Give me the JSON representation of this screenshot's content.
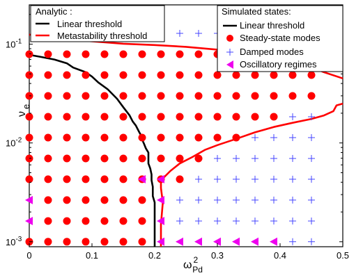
{
  "chart_data": {
    "type": "scatter",
    "title": "",
    "xlabel": "ω",
    "xlabel_superscript": "2",
    "xlabel_subscript": "Pd",
    "ylabel": "ν",
    "ylabel_subscript": "e",
    "xlim": [
      0,
      0.5
    ],
    "ylim": [
      0.00089,
      0.25
    ],
    "yscale": "log",
    "grid": false,
    "x_ticks": [
      {
        "value": 0,
        "label": "0"
      },
      {
        "value": 0.1,
        "label": "0.1"
      },
      {
        "value": 0.2,
        "label": "0.2"
      },
      {
        "value": 0.3,
        "label": "0.3"
      },
      {
        "value": 0.4,
        "label": "0.4"
      },
      {
        "value": 0.5,
        "label": "0.5"
      }
    ],
    "y_ticks": [
      {
        "value": 0.001,
        "label": "10",
        "exponent": "-3"
      },
      {
        "value": 0.01,
        "label": "10",
        "exponent": "-2"
      },
      {
        "value": 0.1,
        "label": "10",
        "exponent": "-1"
      }
    ],
    "grid_x": [
      0,
      0.03,
      0.06,
      0.09,
      0.12,
      0.15,
      0.18,
      0.21,
      0.24,
      0.27,
      0.3,
      0.33,
      0.36,
      0.39,
      0.42,
      0.45
    ],
    "grid_y": [
      0.001,
      0.00162,
      0.00264,
      0.00429,
      0.00697,
      0.01133,
      0.01842,
      0.02995,
      0.04869,
      0.07915,
      0.12868,
      0.2092
    ],
    "legend_analytic": {
      "title": "Analytic :",
      "position": "top-left",
      "entries": [
        {
          "label": "Linear threshold",
          "color": "#000000",
          "marker": "line"
        },
        {
          "label": "Metastability threshold",
          "color": "#ff0000",
          "marker": "line"
        }
      ]
    },
    "legend_simulated": {
      "title": "Simulated states:",
      "position": "top-right",
      "entries": [
        {
          "label": "Linear threshold",
          "color": "#000000",
          "marker": "line"
        },
        {
          "label": "Steady-state modes",
          "color": "#ff0000",
          "marker": "circle"
        },
        {
          "label": "Damped modes",
          "color": "#4444ff",
          "marker": "plus"
        },
        {
          "label": "Oscillatory  regimes",
          "color": "#ee00ee",
          "marker": "triangle-left"
        }
      ]
    },
    "series": [
      {
        "name": "Steady-state modes",
        "color": "#ff0000",
        "marker": "circle",
        "rows": [
          {
            "y": 0.07915,
            "x": [
              0,
              0.03,
              0.06,
              0.09,
              0.12,
              0.15,
              0.18,
              0.21,
              0.24,
              0.27,
              0.3,
              0.33,
              0.36,
              0.39,
              0.42,
              0.45
            ]
          },
          {
            "y": 0.04869,
            "x": [
              0,
              0.03,
              0.06,
              0.09,
              0.12,
              0.15,
              0.18,
              0.21,
              0.24,
              0.27,
              0.3,
              0.33,
              0.36,
              0.39,
              0.42,
              0.45
            ]
          },
          {
            "y": 0.02995,
            "x": [
              0,
              0.03,
              0.06,
              0.09,
              0.12,
              0.15,
              0.18,
              0.21,
              0.24,
              0.27,
              0.3,
              0.33,
              0.36,
              0.39,
              0.42,
              0.45
            ]
          },
          {
            "y": 0.01842,
            "x": [
              0,
              0.03,
              0.06,
              0.09,
              0.12,
              0.15,
              0.18,
              0.21,
              0.24,
              0.27,
              0.3,
              0.33,
              0.36,
              0.39
            ]
          },
          {
            "y": 0.01133,
            "x": [
              0,
              0.03,
              0.06,
              0.09,
              0.12,
              0.15,
              0.18,
              0.21,
              0.24,
              0.27,
              0.3,
              0.33
            ]
          },
          {
            "y": 0.00697,
            "x": [
              0,
              0.03,
              0.06,
              0.09,
              0.12,
              0.15,
              0.18,
              0.21,
              0.24,
              0.27
            ]
          },
          {
            "y": 0.00429,
            "x": [
              0,
              0.03,
              0.06,
              0.09,
              0.12,
              0.15,
              0.18,
              0.21,
              0.24
            ]
          },
          {
            "y": 0.00264,
            "x": [
              0.03,
              0.06,
              0.09,
              0.12,
              0.15,
              0.18
            ]
          },
          {
            "y": 0.00162,
            "x": [
              0.03,
              0.06,
              0.09,
              0.12,
              0.15,
              0.18
            ]
          },
          {
            "y": 0.001,
            "x": [
              0,
              0.03,
              0.06,
              0.09,
              0.12,
              0.15,
              0.18
            ]
          }
        ]
      },
      {
        "name": "Damped modes",
        "color": "#4444ff",
        "marker": "plus",
        "rows": [
          {
            "y": 0.2092,
            "x": [
              0.39,
              0.42,
              0.45
            ]
          },
          {
            "y": 0.12868,
            "x": [
              0.06,
              0.09,
              0.12,
              0.15,
              0.18,
              0.21,
              0.24,
              0.27,
              0.3,
              0.33,
              0.36,
              0.39,
              0.42,
              0.45
            ]
          },
          {
            "y": 0.01842,
            "x": [
              0.42,
              0.45
            ]
          },
          {
            "y": 0.01133,
            "x": [
              0.36,
              0.39,
              0.42,
              0.45
            ]
          },
          {
            "y": 0.00697,
            "x": [
              0.3,
              0.33,
              0.36,
              0.39,
              0.42,
              0.45
            ]
          },
          {
            "y": 0.00429,
            "x": [
              0.27,
              0.3,
              0.33,
              0.36,
              0.39,
              0.42,
              0.45
            ]
          },
          {
            "y": 0.00264,
            "x": [
              0.24,
              0.27,
              0.3,
              0.33,
              0.36,
              0.39,
              0.42,
              0.45
            ]
          },
          {
            "y": 0.00162,
            "x": [
              0.24,
              0.27,
              0.3,
              0.33,
              0.36,
              0.39,
              0.42,
              0.45
            ]
          },
          {
            "y": 0.001,
            "x": [
              0.42,
              0.45
            ]
          }
        ]
      },
      {
        "name": "Oscillatory  regimes",
        "color": "#ee00ee",
        "marker": "triangle-left",
        "rows": [
          {
            "y": 0.00429,
            "x": [
              0.18,
              0.21
            ]
          },
          {
            "y": 0.00264,
            "x": [
              0,
              0.21
            ]
          },
          {
            "y": 0.00162,
            "x": [
              0,
              0.21
            ]
          },
          {
            "y": 0.001,
            "x": [
              0.21,
              0.24,
              0.27,
              0.3,
              0.33,
              0.36,
              0.39
            ]
          }
        ]
      }
    ],
    "curves": [
      {
        "name": "Linear threshold",
        "color": "#000000",
        "points": [
          [
            0,
            0.078
          ],
          [
            0.02,
            0.074
          ],
          [
            0.04,
            0.07
          ],
          [
            0.06,
            0.064
          ],
          [
            0.07,
            0.058
          ],
          [
            0.09,
            0.052
          ],
          [
            0.1,
            0.047
          ],
          [
            0.11,
            0.041
          ],
          [
            0.125,
            0.035
          ],
          [
            0.14,
            0.028
          ],
          [
            0.15,
            0.023
          ],
          [
            0.16,
            0.019
          ],
          [
            0.165,
            0.0165
          ],
          [
            0.17,
            0.015
          ],
          [
            0.175,
            0.013
          ],
          [
            0.178,
            0.012
          ],
          [
            0.18,
            0.0108
          ],
          [
            0.183,
            0.0098
          ],
          [
            0.186,
            0.0088
          ],
          [
            0.19,
            0.008
          ],
          [
            0.19,
            0.0062
          ],
          [
            0.193,
            0.0055
          ],
          [
            0.195,
            0.0048
          ],
          [
            0.195,
            0.0042
          ],
          [
            0.197,
            0.0036
          ],
          [
            0.197,
            0.0029
          ],
          [
            0.2,
            0.0025
          ],
          [
            0.2,
            0.001
          ],
          [
            0.2,
            0.00089
          ]
        ]
      },
      {
        "name": "Metastability threshold",
        "color": "#ff0000",
        "points": [
          [
            0,
            0.125
          ],
          [
            0.05,
            0.113
          ],
          [
            0.1,
            0.107
          ],
          [
            0.15,
            0.101
          ],
          [
            0.2,
            0.098
          ],
          [
            0.25,
            0.094
          ],
          [
            0.3,
            0.088
          ],
          [
            0.35,
            0.08
          ],
          [
            0.4,
            0.07
          ],
          [
            0.44,
            0.062
          ],
          [
            0.47,
            0.052
          ],
          [
            0.5,
            0.045
          ]
        ]
      },
      {
        "name": "Linear threshold",
        "color": "#ff0000",
        "points": [
          [
            0.21,
            0.00089
          ],
          [
            0.21,
            0.0015
          ],
          [
            0.213,
            0.0025
          ],
          [
            0.21,
            0.0035
          ],
          [
            0.21,
            0.0043
          ],
          [
            0.215,
            0.0045
          ],
          [
            0.225,
            0.0052
          ],
          [
            0.24,
            0.0062
          ],
          [
            0.26,
            0.0072
          ],
          [
            0.28,
            0.0085
          ],
          [
            0.3,
            0.0095
          ],
          [
            0.33,
            0.011
          ],
          [
            0.36,
            0.0128
          ],
          [
            0.39,
            0.0145
          ],
          [
            0.42,
            0.016
          ],
          [
            0.45,
            0.0175
          ],
          [
            0.47,
            0.019
          ],
          [
            0.485,
            0.021
          ],
          [
            0.49,
            0.024
          ],
          [
            0.5,
            0.025
          ]
        ]
      }
    ]
  }
}
